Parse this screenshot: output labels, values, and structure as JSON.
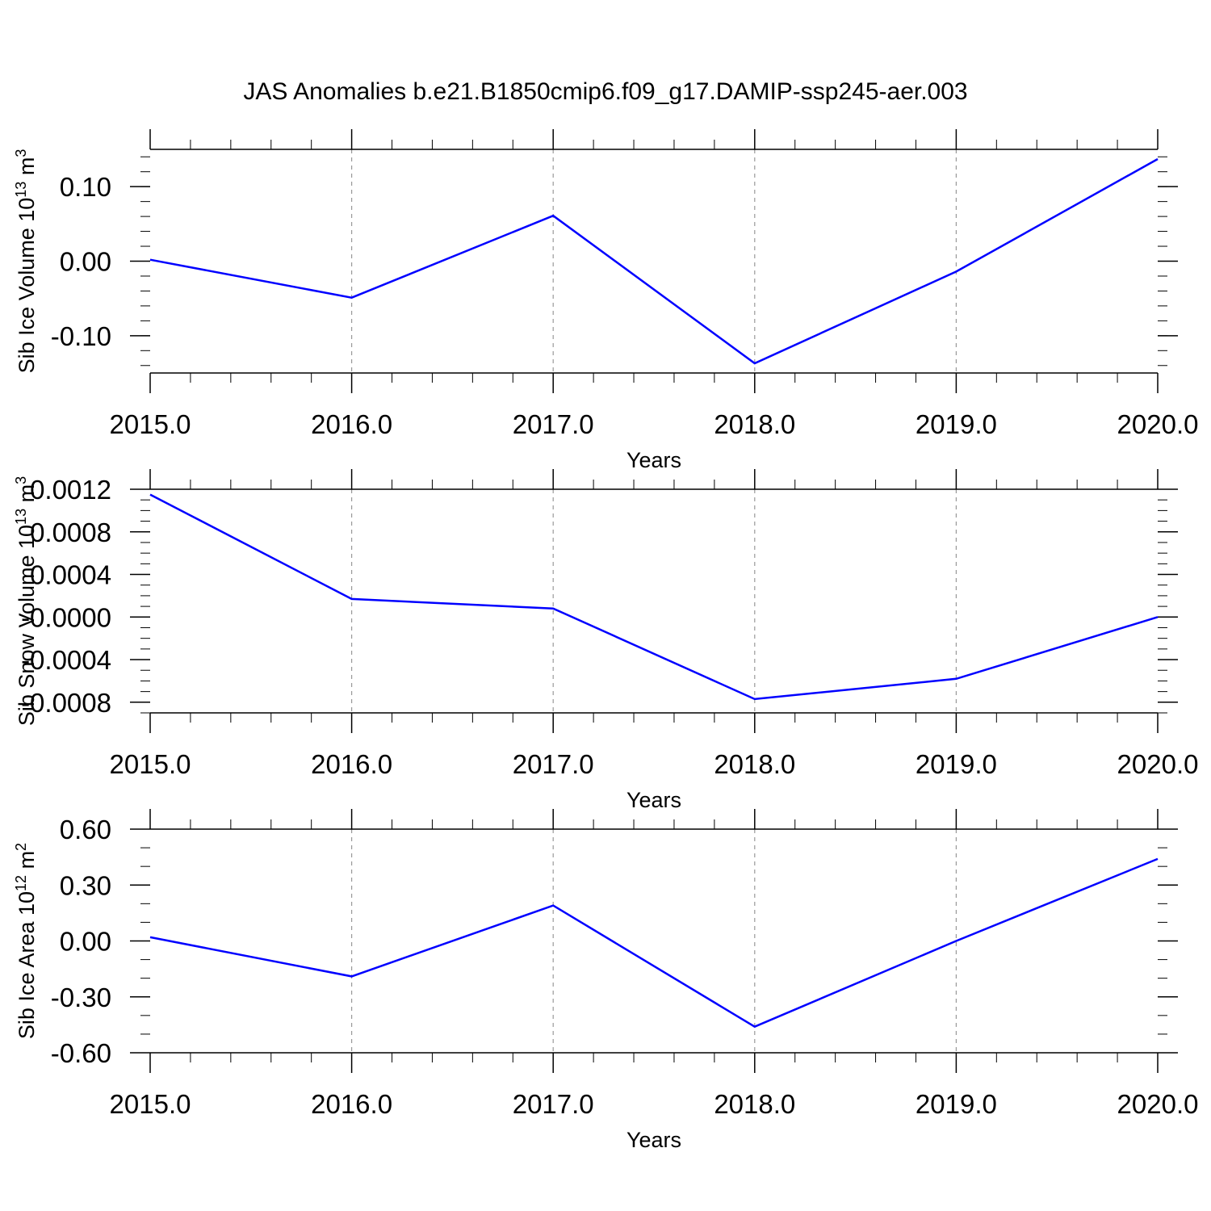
{
  "title": "JAS Anomalies b.e21.B1850cmip6.f09_g17.DAMIP-ssp245-aer.003",
  "colors": {
    "line": "#0000ff",
    "axis": "#000000",
    "grid": "#999999"
  },
  "chart_data": [
    {
      "type": "line",
      "ylabel_parts": [
        "Sib Ice Volume 10",
        "13",
        " m",
        "3"
      ],
      "xlabel": "Years",
      "xlim": [
        2015,
        2020
      ],
      "ylim": [
        -0.15,
        0.15
      ],
      "x_ticks": [
        "2015.0",
        "2016.0",
        "2017.0",
        "2018.0",
        "2019.0",
        "2020.0"
      ],
      "y_ticks": [
        {
          "value": 0.1,
          "label": "0.10"
        },
        {
          "value": 0.0,
          "label": "0.00"
        },
        {
          "value": -0.1,
          "label": "-0.10"
        }
      ],
      "y_minor_step": 0.02,
      "grid": true,
      "x": [
        2015,
        2016,
        2017,
        2018,
        2019,
        2020
      ],
      "values": [
        0.002,
        -0.049,
        0.061,
        -0.137,
        -0.014,
        0.137
      ]
    },
    {
      "type": "line",
      "ylabel_parts": [
        "Sib Snow Volume 10",
        "13",
        " m",
        "3"
      ],
      "xlabel": "Years",
      "xlim": [
        2015,
        2020
      ],
      "ylim": [
        -0.0009,
        0.0012
      ],
      "x_ticks": [
        "2015.0",
        "2016.0",
        "2017.0",
        "2018.0",
        "2019.0",
        "2020.0"
      ],
      "y_ticks": [
        {
          "value": 0.0012,
          "label": "0.0012"
        },
        {
          "value": 0.0008,
          "label": "0.0008"
        },
        {
          "value": 0.0004,
          "label": "0.0004"
        },
        {
          "value": 0.0,
          "label": "-0.0000"
        },
        {
          "value": -0.0004,
          "label": "-0.0004"
        },
        {
          "value": -0.0008,
          "label": "-0.0008"
        }
      ],
      "y_minor_step": 0.0001,
      "grid": true,
      "x": [
        2015,
        2016,
        2017,
        2018,
        2019,
        2020
      ],
      "values": [
        0.00115,
        0.00017,
        8e-05,
        -0.00077,
        -0.00058,
        0.0
      ]
    },
    {
      "type": "line",
      "ylabel_parts": [
        "Sib Ice Area 10",
        "12",
        " m",
        "2"
      ],
      "xlabel": "Years",
      "xlim": [
        2015,
        2020
      ],
      "ylim": [
        -0.6,
        0.6
      ],
      "x_ticks": [
        "2015.0",
        "2016.0",
        "2017.0",
        "2018.0",
        "2019.0",
        "2020.0"
      ],
      "y_ticks": [
        {
          "value": 0.6,
          "label": "0.60"
        },
        {
          "value": 0.3,
          "label": "0.30"
        },
        {
          "value": 0.0,
          "label": "0.00"
        },
        {
          "value": -0.3,
          "label": "-0.30"
        },
        {
          "value": -0.6,
          "label": "-0.60"
        }
      ],
      "y_minor_step": 0.1,
      "grid": true,
      "x": [
        2015,
        2016,
        2017,
        2018,
        2019,
        2020
      ],
      "values": [
        0.02,
        -0.19,
        0.19,
        -0.46,
        0.0,
        0.44
      ]
    }
  ]
}
